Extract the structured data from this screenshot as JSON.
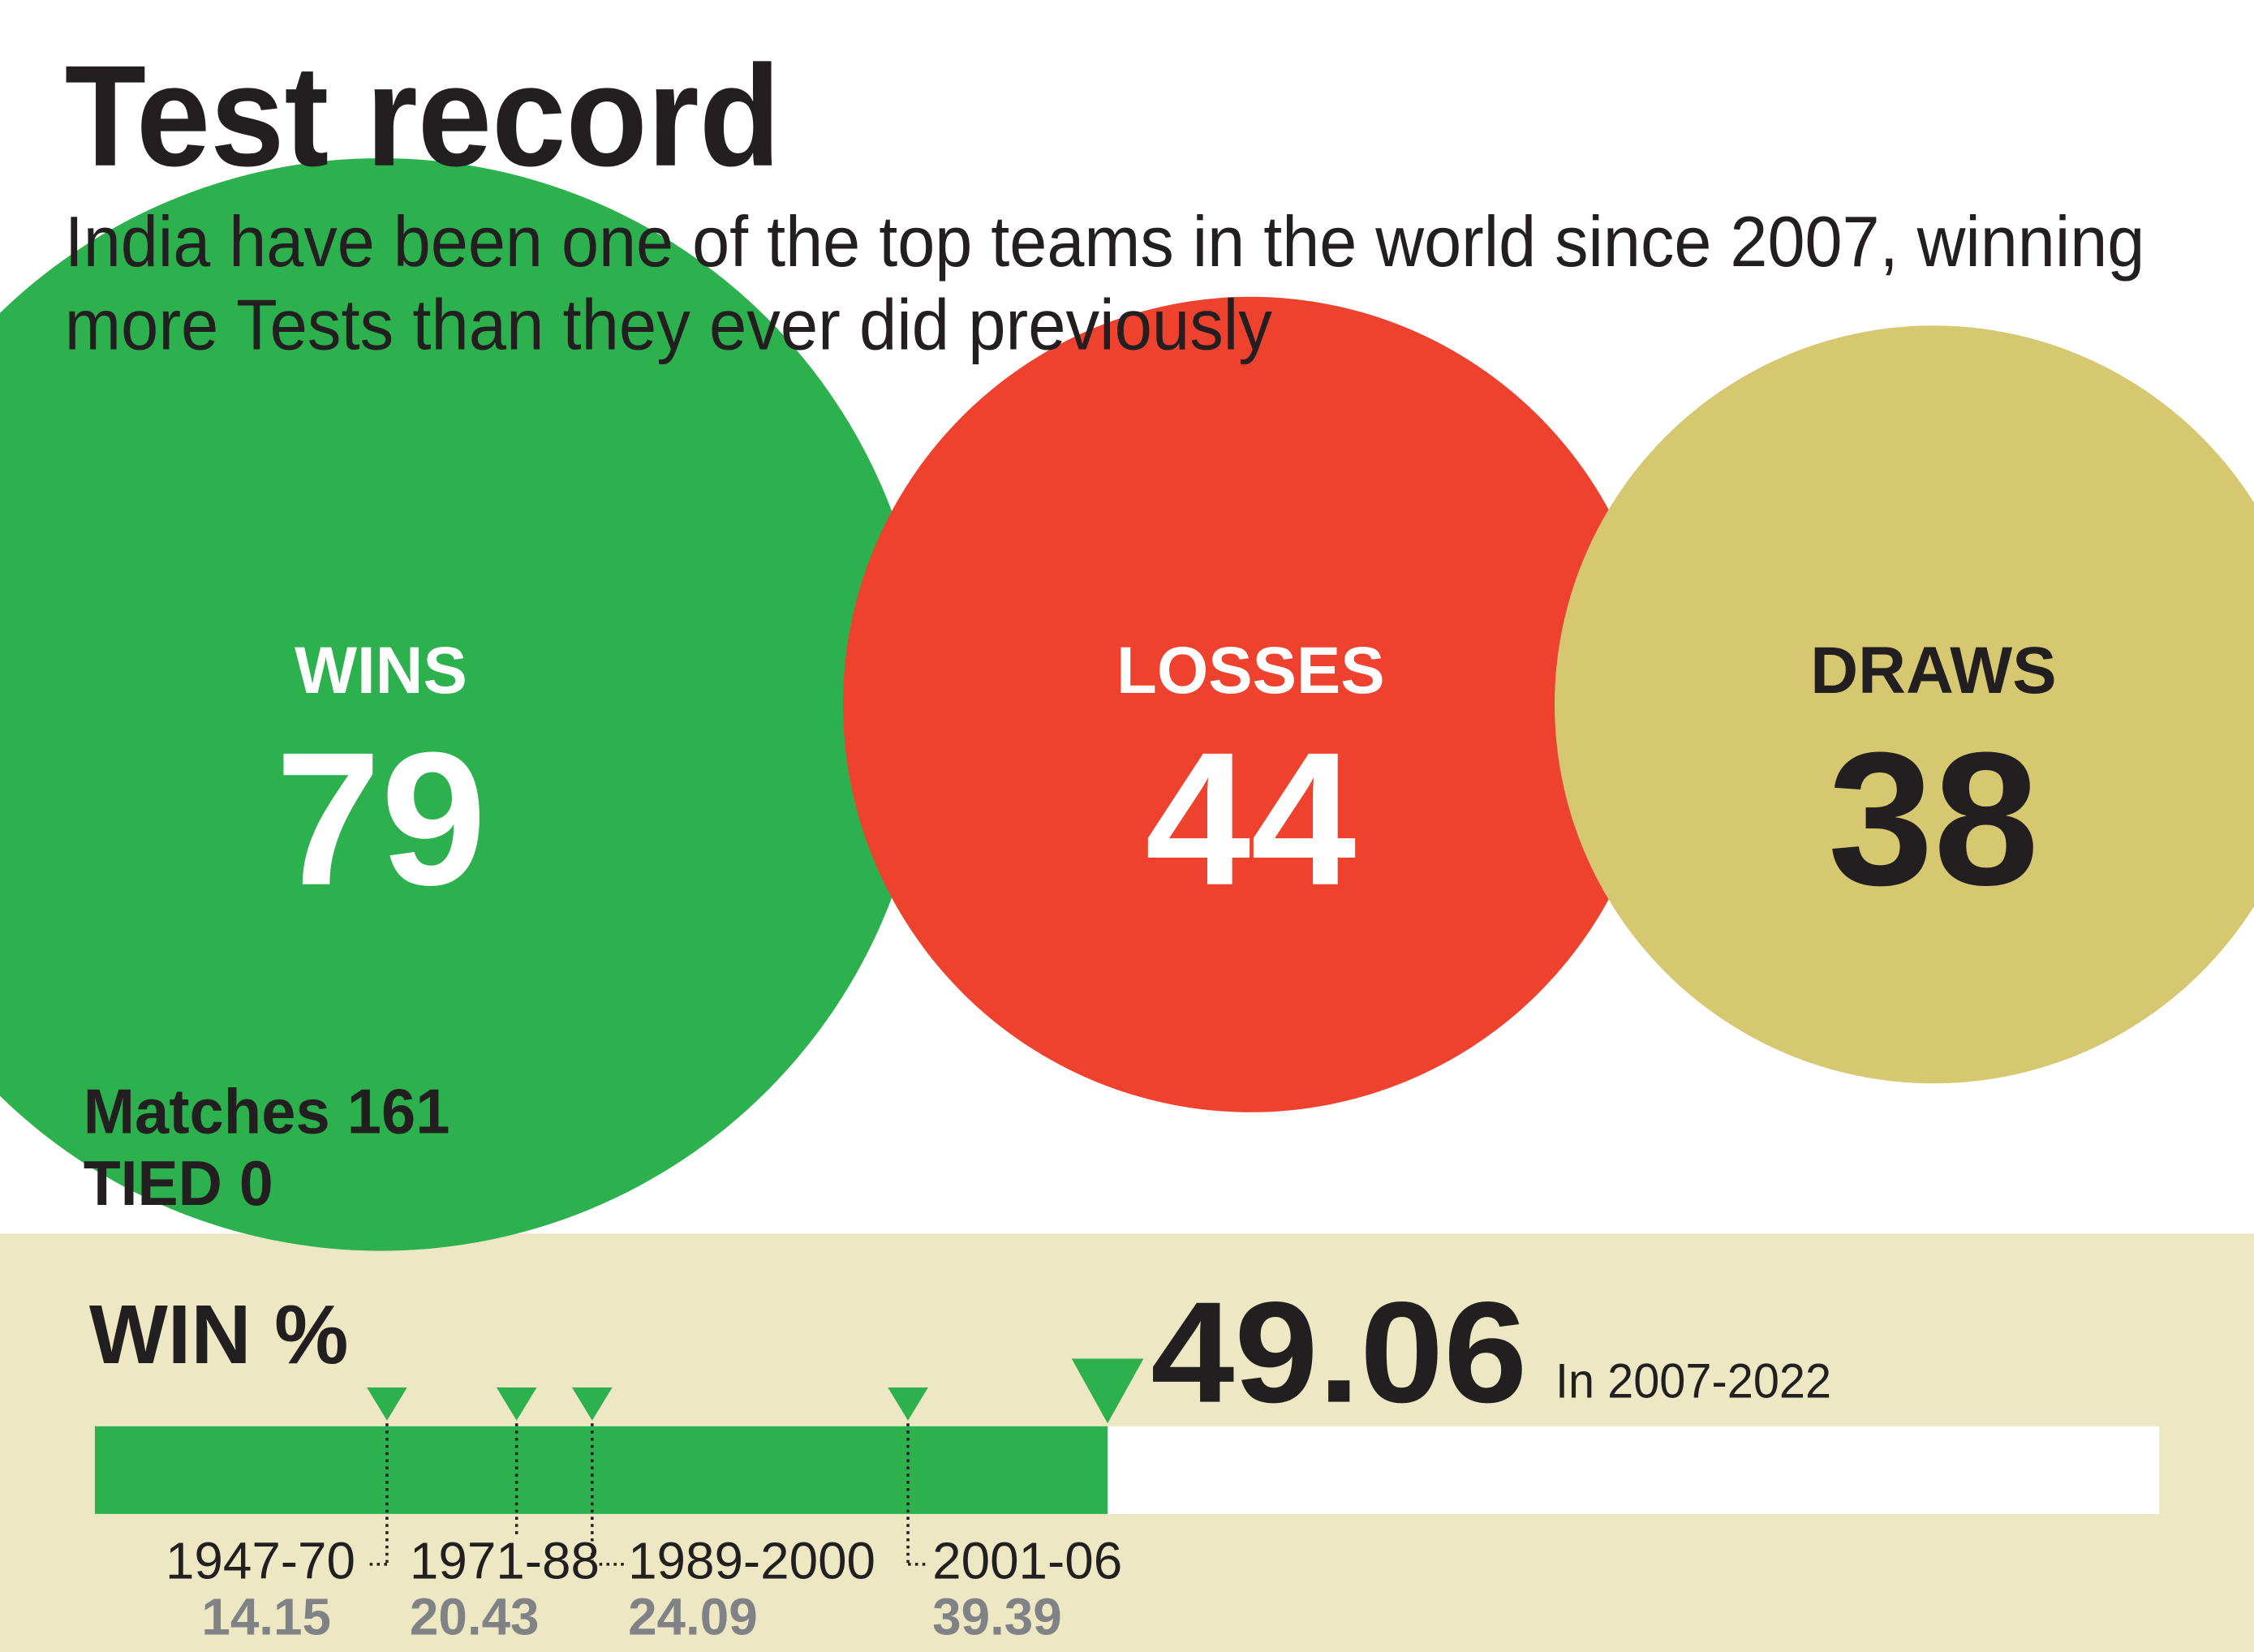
{
  "title": "Test record",
  "subtitle": [
    "India have been one of the top teams in the world since 2007, winning",
    "more Tests than they ever did previously"
  ],
  "summary": {
    "matches": {
      "label": "Matches",
      "value": 161
    },
    "tied": {
      "label": "TIED",
      "value": 0
    }
  },
  "chart_data": [
    {
      "type": "bubble",
      "categories": [
        "WINS",
        "LOSSES",
        "DRAWS"
      ],
      "values": [
        79,
        44,
        38
      ],
      "colors": [
        "#2db14e",
        "#ee412e",
        "#d5c871"
      ],
      "label_colors": [
        "#ffffff",
        "#ffffff",
        "#231f20"
      ]
    },
    {
      "type": "bar",
      "title": "WIN %",
      "xlim": [
        0,
        100
      ],
      "value": 49.06,
      "value_label": "In 2007-2022",
      "color": "#2db14e",
      "track_color": "#ffffff",
      "background": "#ede8c3",
      "markers": {
        "categories": [
          "1947-70",
          "1971-88",
          "1989-2000",
          "2001-06"
        ],
        "values": [
          14.15,
          20.43,
          24.09,
          39.39
        ]
      }
    }
  ]
}
